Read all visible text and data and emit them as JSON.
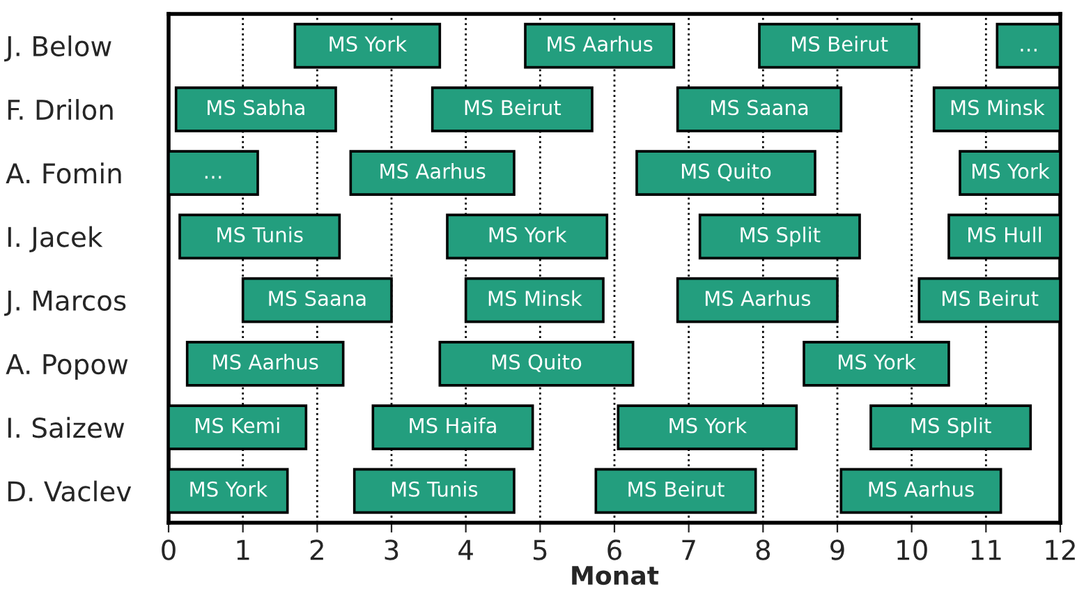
{
  "chart_data": {
    "type": "bar",
    "orientation": "horizontal",
    "xlabel": "Monat",
    "categories": [
      "J. Below",
      "F. Drilon",
      "A. Fomin",
      "I. Jacek",
      "J. Marcos",
      "A. Popow",
      "I. Saizew",
      "D. Vaclev"
    ],
    "series": [
      {
        "color": "#239e7e",
        "base": [
          1.7,
          0.1,
          0,
          0.15,
          1,
          0.25,
          0,
          0
        ],
        "values": [
          1.95,
          2.15,
          1.2,
          2.15,
          2,
          2.1,
          1.85,
          1.6
        ],
        "value_labels": [
          "MS York",
          "MS Sabha",
          "…",
          "MS Tunis",
          "MS Saana",
          "MS Aarhus",
          "MS Kemi",
          "MS York"
        ]
      },
      {
        "color": "#239e7e",
        "base": [
          4.8,
          3.55,
          2.45,
          3.75,
          4,
          3.65,
          2.75,
          2.5
        ],
        "values": [
          2,
          2.15,
          2.2,
          2.15,
          1.85,
          2.6,
          2.15,
          2.15
        ],
        "value_labels": [
          "MS Aarhus",
          "MS Beirut",
          "MS Aarhus",
          "MS York",
          "MS Minsk",
          "MS Quito",
          "MS Haifa",
          "MS Tunis"
        ]
      },
      {
        "color": "#239e7e",
        "base": [
          7.95,
          6.85,
          6.3,
          7.15,
          6.85,
          8.55,
          6.05,
          5.75
        ],
        "values": [
          2.15,
          2.2,
          2.4,
          2.15,
          2.15,
          1.95,
          2.4,
          2.15
        ],
        "value_labels": [
          "MS Beirut",
          "MS Saana",
          "MS Quito",
          "MS Split",
          "MS Aarhus",
          "MS York",
          "MS York",
          "MS Beirut"
        ]
      },
      {
        "color": "#239e7e",
        "base": [
          11.15,
          10.3,
          10.65,
          10.5,
          10.1,
          null,
          9.45,
          9.05
        ],
        "values": [
          0.85,
          1.7,
          1.35,
          1.5,
          1.9,
          null,
          2.15,
          2.15
        ],
        "value_labels": [
          "…",
          "MS Minsk",
          "MS York",
          "MS Hull",
          "MS Beirut",
          null,
          "MS Split",
          "MS Aarhus"
        ]
      }
    ],
    "xlim": [
      0,
      12
    ],
    "xticks": [
      0,
      1,
      2,
      3,
      4,
      5,
      6,
      7,
      8,
      9,
      10,
      11,
      12
    ],
    "grid": "x",
    "legend": false
  }
}
